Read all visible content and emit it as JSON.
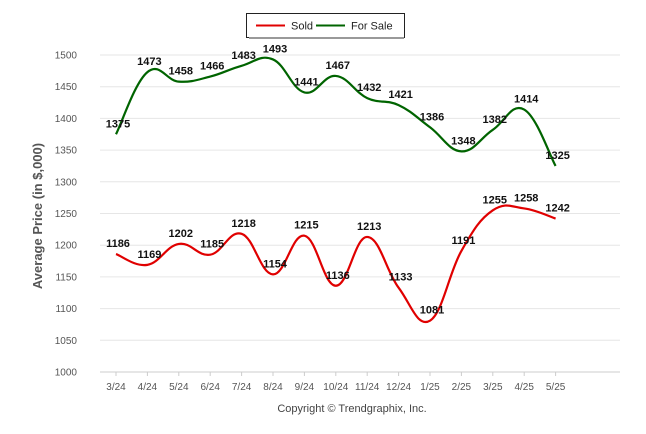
{
  "chart_data": {
    "type": "line",
    "categories": [
      "3/24",
      "4/24",
      "5/24",
      "6/24",
      "7/24",
      "8/24",
      "9/24",
      "10/24",
      "11/24",
      "12/24",
      "1/25",
      "2/25",
      "3/25",
      "4/25",
      "5/25"
    ],
    "series": [
      {
        "name": "Sold",
        "color": "#e00000",
        "values": [
          1186,
          1169,
          1202,
          1185,
          1218,
          1154,
          1215,
          1136,
          1213,
          1133,
          1081,
          1191,
          1255,
          1258,
          1242
        ]
      },
      {
        "name": "For Sale",
        "color": "#006400",
        "values": [
          1375,
          1473,
          1458,
          1466,
          1483,
          1493,
          1441,
          1467,
          1432,
          1421,
          1386,
          1348,
          1382,
          1414,
          1325
        ]
      }
    ],
    "ylabel": "Average Price (in $,000)",
    "ylim": [
      1000,
      1500
    ],
    "yticks": [
      1000,
      1050,
      1100,
      1150,
      1200,
      1250,
      1300,
      1350,
      1400,
      1450,
      1500
    ],
    "grid": true,
    "legend": "top-center"
  },
  "footer": "Copyright © Trendgraphix, Inc."
}
